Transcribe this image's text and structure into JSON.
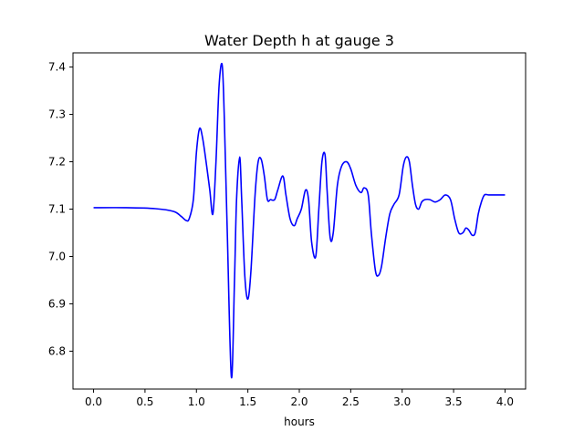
{
  "chart_data": {
    "type": "line",
    "title": "Water Depth h at gauge 3",
    "xlabel": "hours",
    "ylabel": "",
    "xlim": [
      -0.2,
      4.2
    ],
    "ylim": [
      6.72,
      7.43
    ],
    "x_ticks": [
      0.0,
      0.5,
      1.0,
      1.5,
      2.0,
      2.5,
      3.0,
      3.5,
      4.0
    ],
    "x_tick_labels": [
      "0.0",
      "0.5",
      "1.0",
      "1.5",
      "2.0",
      "2.5",
      "3.0",
      "3.5",
      "4.0"
    ],
    "y_ticks": [
      6.8,
      6.9,
      7.0,
      7.1,
      7.2,
      7.3,
      7.4
    ],
    "y_tick_labels": [
      "6.8",
      "6.9",
      "7.0",
      "7.1",
      "7.2",
      "7.3",
      "7.4"
    ],
    "grid": false,
    "legend": "none",
    "line_color": "#0000ff",
    "series": [
      {
        "x": [
          0.0,
          0.3,
          0.6,
          0.78,
          0.85,
          0.9,
          0.93,
          0.97,
          1.0,
          1.03,
          1.06,
          1.1,
          1.13,
          1.16,
          1.19,
          1.22,
          1.25,
          1.27,
          1.3,
          1.34,
          1.37,
          1.39,
          1.42,
          1.44,
          1.47,
          1.5,
          1.53,
          1.57,
          1.6,
          1.63,
          1.66,
          1.69,
          1.72,
          1.76,
          1.79,
          1.84,
          1.87,
          1.91,
          1.95,
          1.98,
          2.02,
          2.06,
          2.09,
          2.12,
          2.16,
          2.19,
          2.22,
          2.25,
          2.27,
          2.3,
          2.33,
          2.37,
          2.41,
          2.46,
          2.5,
          2.55,
          2.6,
          2.63,
          2.67,
          2.7,
          2.74,
          2.77,
          2.8,
          2.84,
          2.88,
          2.92,
          2.97,
          3.01,
          3.04,
          3.07,
          3.1,
          3.13,
          3.16,
          3.19,
          3.22,
          3.27,
          3.32,
          3.37,
          3.42,
          3.47,
          3.51,
          3.55,
          3.59,
          3.62,
          3.65,
          3.68,
          3.71,
          3.74,
          3.77,
          3.8,
          3.84,
          3.88,
          3.92,
          3.96,
          4.0
        ],
        "y": [
          7.103,
          7.103,
          7.101,
          7.095,
          7.085,
          7.076,
          7.08,
          7.12,
          7.22,
          7.27,
          7.25,
          7.19,
          7.14,
          7.09,
          7.2,
          7.36,
          7.405,
          7.3,
          7.05,
          6.745,
          6.95,
          7.12,
          7.21,
          7.12,
          6.96,
          6.91,
          6.97,
          7.13,
          7.2,
          7.205,
          7.17,
          7.12,
          7.12,
          7.12,
          7.14,
          7.17,
          7.13,
          7.08,
          7.065,
          7.08,
          7.1,
          7.14,
          7.12,
          7.03,
          7.0,
          7.1,
          7.2,
          7.215,
          7.14,
          7.04,
          7.05,
          7.15,
          7.19,
          7.2,
          7.185,
          7.15,
          7.135,
          7.145,
          7.13,
          7.05,
          6.97,
          6.96,
          6.98,
          7.04,
          7.09,
          7.11,
          7.13,
          7.19,
          7.21,
          7.2,
          7.15,
          7.11,
          7.1,
          7.115,
          7.12,
          7.12,
          7.115,
          7.12,
          7.13,
          7.12,
          7.08,
          7.05,
          7.05,
          7.06,
          7.055,
          7.045,
          7.05,
          7.09,
          7.115,
          7.13,
          7.13,
          7.13,
          7.13,
          7.13,
          7.13
        ]
      }
    ]
  }
}
